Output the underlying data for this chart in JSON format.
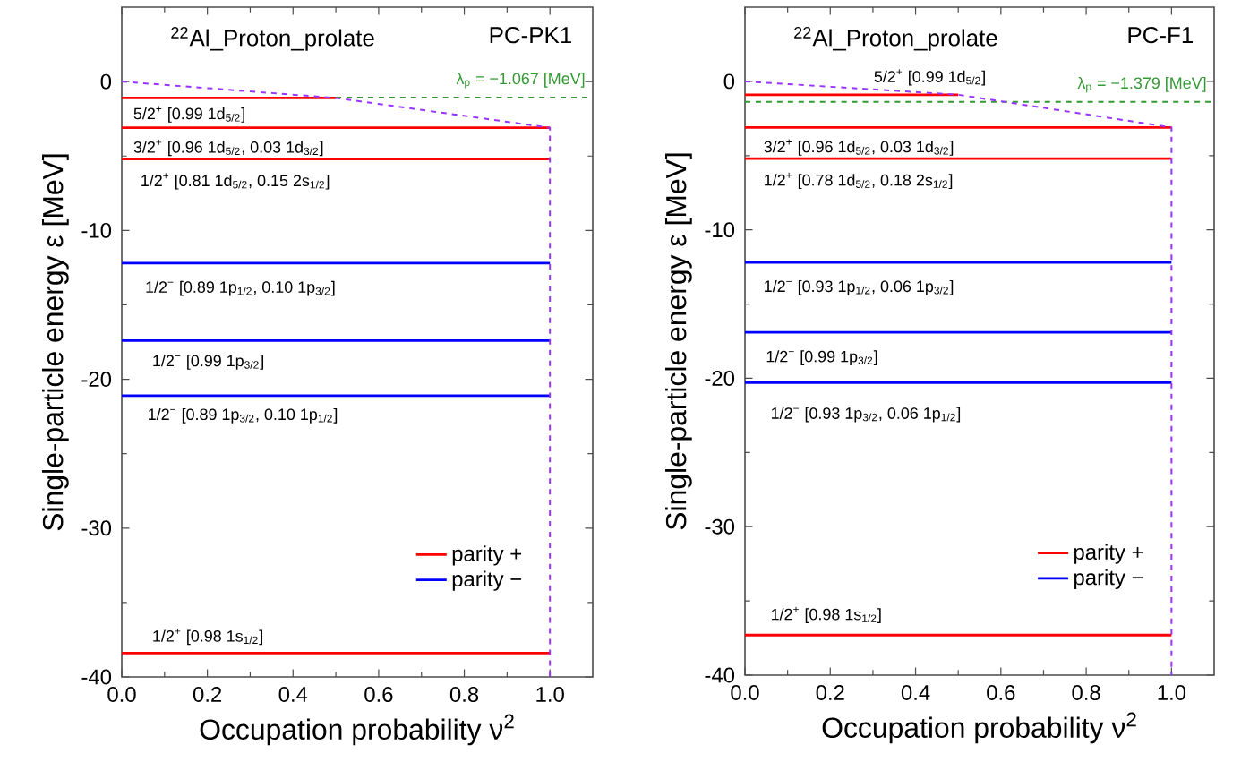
{
  "chart_data": [
    {
      "type": "line",
      "title": "$^{22}$Al_Proton_prolate",
      "subtitle": "PC-PK1",
      "xlabel": "Occupation probability ν$^{2}$",
      "ylabel": "Single-particle energy ε [MeV]",
      "xlim": [
        0,
        1.1
      ],
      "ylim": [
        -40,
        5
      ],
      "xticks": [
        {
          "value": 0,
          "label": "0.0"
        },
        {
          "value": 0.2,
          "label": "0.2"
        },
        {
          "value": 0.4,
          "label": "0.4"
        },
        {
          "value": 0.6,
          "label": "0.6"
        },
        {
          "value": 0.8,
          "label": "0.8"
        },
        {
          "value": 1,
          "label": "1.0"
        }
      ],
      "yticks": [
        -40,
        -30,
        -20,
        -10,
        0
      ],
      "grid": false,
      "legend": "bottom right",
      "marker": "none",
      "series": [
        {
          "name": "parity +",
          "color": "#ff0000",
          "x": [
            0,
            0.5
          ],
          "values": [
            -1.1,
            -1.1
          ]
        },
        {
          "color": "#ff0000",
          "x": [
            0,
            1
          ],
          "values": [
            -3.1,
            -3.1
          ]
        },
        {
          "color": "#ff0000",
          "x": [
            0,
            1
          ],
          "values": [
            -5.2,
            -5.2
          ]
        },
        {
          "name": "parity −",
          "color": "#0000ff",
          "x": [
            0,
            1
          ],
          "values": [
            -12.2,
            -12.2
          ]
        },
        {
          "color": "#0000ff",
          "x": [
            0,
            1
          ],
          "values": [
            -17.4,
            -17.4
          ]
        },
        {
          "color": "#0000ff",
          "x": [
            0,
            1
          ],
          "values": [
            -21.1,
            -21.1
          ]
        },
        {
          "color": "#ff0000",
          "x": [
            0,
            1
          ],
          "values": [
            -38.4,
            -38.4
          ]
        },
        {
          "color": "#9933ff",
          "line_style": "dashed",
          "x": [
            0,
            0.5,
            1,
            1
          ],
          "values": [
            0,
            -1.1,
            -3.1,
            -40
          ]
        }
      ],
      "ref_lines": [
        {
          "axis": "y",
          "value": -1.067,
          "label": "λ$_{p}$ = −1.067 [MeV]",
          "color": "#339933",
          "line_style": "dashed"
        }
      ],
      "annotations": [
        "5/2$^{+}$ [0.99 1d$_{5/2}$]",
        "3/2$^{+}$ [0.96 1d$_{5/2}$, 0.03 1d$_{3/2}$]",
        "1/2$^{+}$ [0.81 1d$_{5/2}$, 0.15 2s$_{1/2}$]",
        "1/2$^{−}$ [0.89 1p$_{1/2}$, 0.10 1p$_{3/2}$]",
        "1/2$^{−}$ [0.99 1p$_{3/2}$]",
        "1/2$^{−}$ [0.89 1p$_{3/2}$, 0.10 1p$_{1/2}$]",
        "1/2$^{+}$ [0.98 1s$_{1/2}$]"
      ]
    },
    {
      "type": "line",
      "title": "$^{22}$Al_Proton_prolate",
      "subtitle": "PC-F1",
      "xlabel": "Occupation probability ν$^{2}$",
      "ylabel": "Single-particle energy ε [MeV]",
      "xlim": [
        0,
        1.1
      ],
      "ylim": [
        -40,
        5
      ],
      "xticks": [
        {
          "value": 0,
          "label": "0.0"
        },
        {
          "value": 0.2,
          "label": "0.2"
        },
        {
          "value": 0.4,
          "label": "0.4"
        },
        {
          "value": 0.6,
          "label": "0.6"
        },
        {
          "value": 0.8,
          "label": "0.8"
        },
        {
          "value": 1,
          "label": "1.0"
        }
      ],
      "yticks": [
        -40,
        -30,
        -20,
        -10,
        0
      ],
      "grid": false,
      "legend": "bottom right",
      "marker": "none",
      "series": [
        {
          "name": "parity +",
          "color": "#ff0000",
          "x": [
            0,
            0.5
          ],
          "values": [
            -0.9,
            -0.9
          ]
        },
        {
          "color": "#ff0000",
          "x": [
            0,
            1
          ],
          "values": [
            -3.1,
            -3.1
          ]
        },
        {
          "color": "#ff0000",
          "x": [
            0,
            1
          ],
          "values": [
            -5.2,
            -5.2
          ]
        },
        {
          "name": "parity −",
          "color": "#0000ff",
          "x": [
            0,
            1
          ],
          "values": [
            -12.2,
            -12.2
          ]
        },
        {
          "color": "#0000ff",
          "x": [
            0,
            1
          ],
          "values": [
            -16.9,
            -16.9
          ]
        },
        {
          "color": "#0000ff",
          "x": [
            0,
            1
          ],
          "values": [
            -20.3,
            -20.3
          ]
        },
        {
          "color": "#ff0000",
          "x": [
            0,
            1
          ],
          "values": [
            -37.3,
            -37.3
          ]
        },
        {
          "color": "#9933ff",
          "line_style": "dashed",
          "x": [
            0,
            0.5,
            1,
            1
          ],
          "values": [
            0,
            -0.9,
            -3.1,
            -40
          ]
        }
      ],
      "ref_lines": [
        {
          "axis": "y",
          "value": -1.379,
          "label": "λ$_{p}$ = −1.379 [MeV]",
          "color": "#339933",
          "line_style": "dashed"
        }
      ],
      "annotations": [
        "5/2$^{+}$ [0.99 1d$_{5/2}$]",
        "3/2$^{+}$ [0.96 1d$_{5/2}$, 0.03 1d$_{3/2}$]",
        "1/2$^{+}$ [0.78 1d$_{5/2}$, 0.18 2s$_{1/2}$]",
        "1/2$^{−}$ [0.93 1p$_{1/2}$, 0.06 1p$_{3/2}$]",
        "1/2$^{−}$ [0.99 1p$_{3/2}$]",
        "1/2$^{−}$ [0.93 1p$_{3/2}$, 0.06 1p$_{1/2}$]",
        "1/2$^{+}$ [0.98 1s$_{1/2}$]"
      ]
    }
  ]
}
